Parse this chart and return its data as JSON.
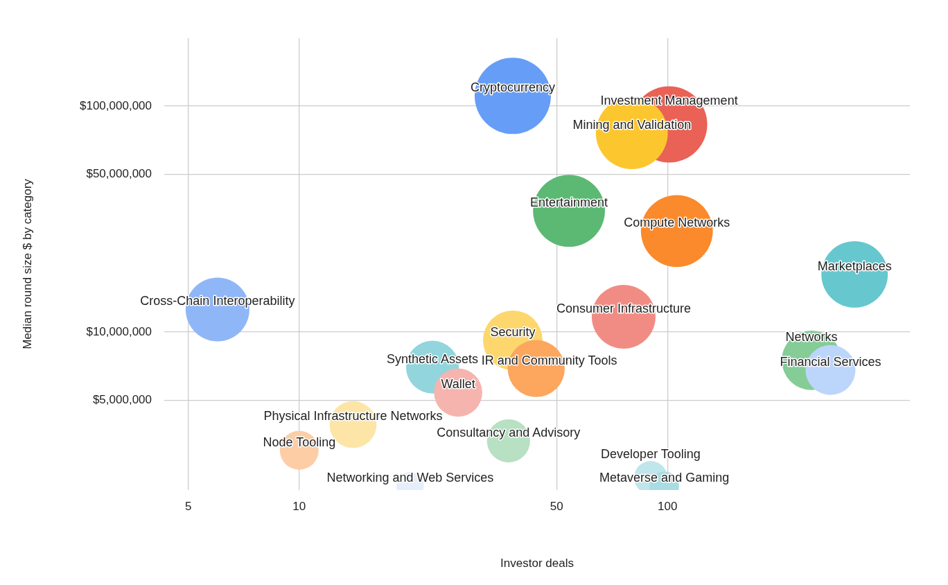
{
  "chart_data": {
    "type": "bubble",
    "xlabel": "Investor deals",
    "ylabel": "Median round size $ by category",
    "log": "xy",
    "grid": true,
    "legend": false,
    "xlim": [
      4.3,
      455
    ],
    "xticks": [
      5,
      10,
      50,
      100
    ],
    "ylim": [
      2000000,
      200000000
    ],
    "yticks": [
      {
        "value": 5000000,
        "label": "$5,000,000"
      },
      {
        "value": 10000000,
        "label": "$10,000,000"
      },
      {
        "value": 50000000,
        "label": "$50,000,000"
      },
      {
        "value": 100000000,
        "label": "$100,000,000"
      }
    ],
    "series": [
      {
        "name": "Cryptocurrency",
        "color": "#669df6",
        "x": [
          38
        ],
        "values": [
          111000000
        ],
        "sizes": [
          1
        ]
      },
      {
        "name": "Investment Management",
        "color": "#ea6155",
        "x": [
          101
        ],
        "values": [
          83000000
        ],
        "sizes": [
          1
        ]
      },
      {
        "name": "Mining and Validation",
        "color": "#fcc62e",
        "x": [
          80
        ],
        "values": [
          76000000
        ],
        "sizes": [
          0.89
        ]
      },
      {
        "name": "Entertainment",
        "color": "#5bb974",
        "x": [
          54
        ],
        "values": [
          34400000
        ],
        "sizes": [
          0.89
        ]
      },
      {
        "name": "Compute Networks",
        "color": "#fa8a2c",
        "x": [
          106
        ],
        "values": [
          28000000
        ],
        "sizes": [
          0.89
        ]
      },
      {
        "name": "Marketplaces",
        "color": "#67c7cf",
        "x": [
          322
        ],
        "values": [
          18000000
        ],
        "sizes": [
          0.76
        ]
      },
      {
        "name": "Cross-Chain Interoperability",
        "color": "#8fb7f7",
        "x": [
          6
        ],
        "values": [
          12600000
        ],
        "sizes": [
          0.7
        ]
      },
      {
        "name": "Consumer Infrastructure",
        "color": "#f18c84",
        "x": [
          76
        ],
        "values": [
          11700000
        ],
        "sizes": [
          0.7
        ]
      },
      {
        "name": "Security",
        "color": "#fdd76d",
        "x": [
          38
        ],
        "values": [
          9200000
        ],
        "sizes": [
          0.61
        ]
      },
      {
        "name": "IR and Community Tools",
        "color": "#fca65e",
        "x": [
          44
        ],
        "values": [
          6900000
        ],
        "sizes": [
          0.56
        ]
      },
      {
        "name": "Synthetic Assets",
        "color": "#92d5dc",
        "x": [
          23
        ],
        "values": [
          7000000
        ],
        "sizes": [
          0.48
        ]
      },
      {
        "name": "Wallet",
        "color": "#f6b4ae",
        "x": [
          27
        ],
        "values": [
          5400000
        ],
        "sizes": [
          0.4
        ]
      },
      {
        "name": "Networks",
        "color": "#85cc97",
        "x": [
          246
        ],
        "values": [
          7500000
        ],
        "sizes": [
          0.61
        ]
      },
      {
        "name": "Financial Services",
        "color": "#bcd5fb",
        "x": [
          277
        ],
        "values": [
          6800000
        ],
        "sizes": [
          0.43
        ]
      },
      {
        "name": "Physical Infrastructure Networks",
        "color": "#fde5a8",
        "x": [
          14
        ],
        "values": [
          3900000
        ],
        "sizes": [
          0.38
        ]
      },
      {
        "name": "Node Tooling",
        "color": "#fdcda6",
        "x": [
          10
        ],
        "values": [
          3000000
        ],
        "sizes": [
          0.26
        ]
      },
      {
        "name": "Consultancy and Advisory",
        "color": "#b8e0c2",
        "x": [
          37
        ],
        "values": [
          3300000
        ],
        "sizes": [
          0.32
        ]
      },
      {
        "name": "Networking and Web Services",
        "color": "#e6eefd",
        "x": [
          20
        ],
        "values": [
          2090000
        ],
        "sizes": [
          0.13
        ]
      },
      {
        "name": "Developer Tooling",
        "color": "#bfe6ea",
        "x": [
          90
        ],
        "values": [
          2270000
        ],
        "sizes": [
          0.19
        ]
      },
      {
        "name": "Metaverse and Gaming",
        "color": "#a9dde3",
        "x": [
          98
        ],
        "values": [
          2080000
        ],
        "sizes": [
          0.15
        ]
      }
    ]
  }
}
